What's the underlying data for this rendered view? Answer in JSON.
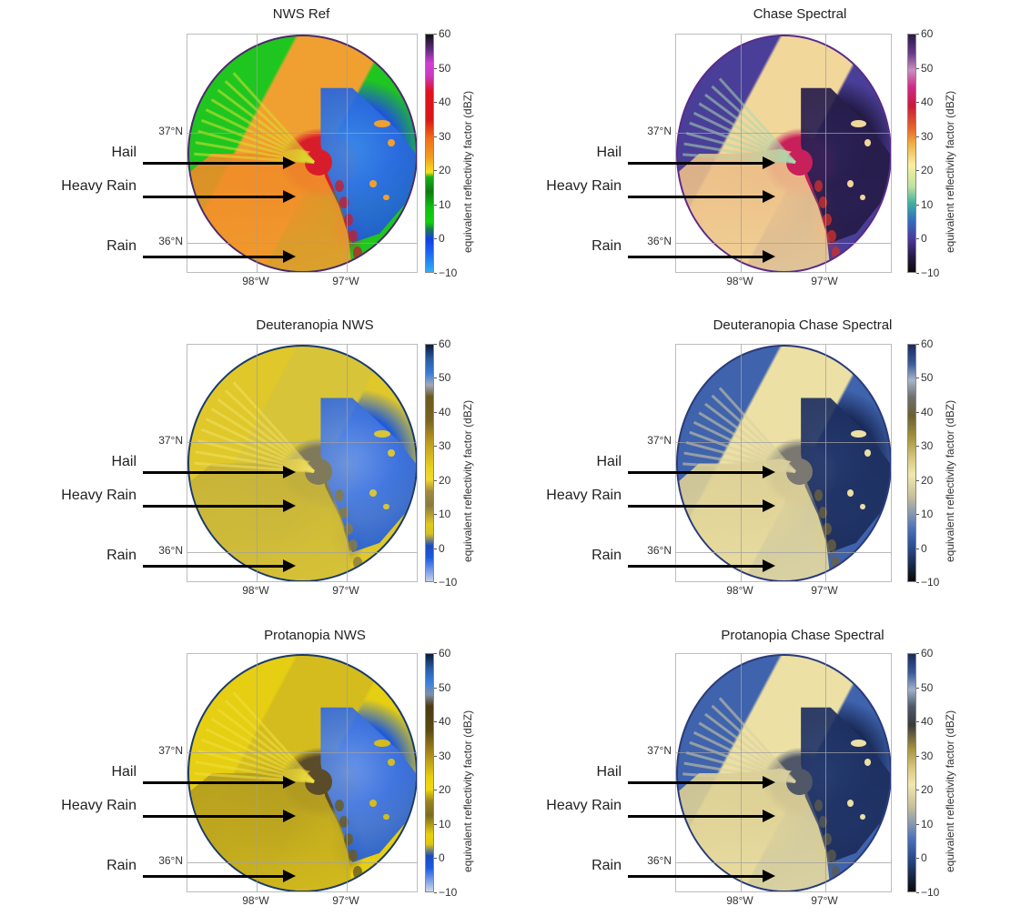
{
  "figure": {
    "panels": [
      {
        "id": "nws-ref",
        "title": "NWS Ref",
        "colormap": "NWS Reflectivity",
        "annotations": [
          "Hail",
          "Heavy Rain",
          "Rain"
        ],
        "lat_ticks": [
          "37°N",
          "36°N"
        ],
        "lon_ticks": [
          "98°W",
          "97°W"
        ],
        "colorbar": {
          "label": "equivalent reflectivity factor (dBZ)",
          "ticks": [
            "60",
            "50",
            "40",
            "30",
            "20",
            "10",
            "0",
            "−10"
          ],
          "stops": [
            "#111111 0%",
            "#5a2a7a 6%",
            "#d040d0 12%",
            "#c83ac8 17%",
            "#e01020 24%",
            "#d81818 36%",
            "#f07018 44%",
            "#f0a020 52%",
            "#f8e020 58%",
            "#18b018 60%",
            "#107a10 66%",
            "#10c010 73%",
            "#10d010 79%",
            "#1a7a4a 82%",
            "#1040e0 86%",
            "#1a60f0 91%",
            "#30b0f0 100%"
          ]
        },
        "palette": {
          "bg": "#1fc61f",
          "storm": "#f0a030",
          "storm2": "#f07a20",
          "core": "#d81d2a",
          "clear": "#1f55d8",
          "clear2": "#3a8ae8",
          "rim": "#4a2a6a",
          "edge": "#c02030",
          "ray": "#d8e030"
        }
      },
      {
        "id": "chase-spectral",
        "title": "Chase Spectral",
        "colormap": "Chase Spectral",
        "annotations": [
          "Hail",
          "Heavy Rain",
          "Rain"
        ],
        "lat_ticks": [
          "37°N",
          "36°N"
        ],
        "lon_ticks": [
          "98°W",
          "97°W"
        ],
        "colorbar": {
          "label": "equivalent reflectivity factor (dBZ)",
          "ticks": [
            "60",
            "50",
            "40",
            "30",
            "20",
            "10",
            "0",
            "−10"
          ],
          "stops": [
            "#2a1a4a 0%",
            "#6a3a8a 8%",
            "#c890c0 15%",
            "#d02a8a 22%",
            "#c81a3a 30%",
            "#e86a2a 40%",
            "#f0b040 46%",
            "#f8f0a0 55%",
            "#c0e0a0 64%",
            "#40b0a0 71%",
            "#3070c0 78%",
            "#4a3a9a 86%",
            "#2a1a4a 93%",
            "#0a0a0a 100%"
          ]
        },
        "palette": {
          "bg": "#4a3f98",
          "storm": "#f1d79a",
          "storm2": "#e8a878",
          "core": "#c8205a",
          "clear": "#231a44",
          "clear2": "#2c2258",
          "rim": "#5a2a8a",
          "edge": "#c83030",
          "ray": "#a8d8b0"
        }
      },
      {
        "id": "deuteranopia-nws",
        "title": "Deuteranopia NWS",
        "colormap": "NWS Reflectivity (deuteranopia simulation)",
        "annotations": [
          "Hail",
          "Heavy Rain",
          "Rain"
        ],
        "lat_ticks": [
          "37°N",
          "36°N"
        ],
        "lon_ticks": [
          "98°W",
          "97°W"
        ],
        "colorbar": {
          "label": "equivalent reflectivity factor (dBZ)",
          "ticks": [
            "60",
            "50",
            "40",
            "30",
            "20",
            "10",
            "0",
            "−10"
          ],
          "stops": [
            "#0a1a3a 0%",
            "#2a5aa0 6%",
            "#3a7ad8 12%",
            "#a0a8b8 17%",
            "#6a5a20 22%",
            "#7a6420 32%",
            "#c0a020 42%",
            "#e8d020 52%",
            "#f0d830 57%",
            "#a08a40 62%",
            "#8a7a40 68%",
            "#e0c820 76%",
            "#d8c020 80%",
            "#1a4ac0 85%",
            "#1a5ae0 90%",
            "#c8d0e8 100%"
          ]
        },
        "palette": {
          "bg": "#e0c82a",
          "storm": "#d8c438",
          "storm2": "#b8a43a",
          "core": "#807a5a",
          "clear": "#1f5ad8",
          "clear2": "#6a96e8",
          "rim": "#1a3a6a",
          "edge": "#8a7a40",
          "ray": "#f0e060"
        }
      },
      {
        "id": "deuteranopia-chase-spectral",
        "title": "Deuteranopia Chase Spectral",
        "colormap": "Chase Spectral (deuteranopia simulation)",
        "annotations": [
          "Hail",
          "Heavy Rain",
          "Rain"
        ],
        "lat_ticks": [
          "37°N",
          "36°N"
        ],
        "lon_ticks": [
          "98°W",
          "97°W"
        ],
        "colorbar": {
          "label": "equivalent reflectivity factor (dBZ)",
          "ticks": [
            "60",
            "50",
            "40",
            "30",
            "20",
            "10",
            "0",
            "−10"
          ],
          "stops": [
            "#1a2a5a 0%",
            "#3a5a9a 8%",
            "#a8b4c8 15%",
            "#707070 22%",
            "#6a6030 30%",
            "#a89840 40%",
            "#d8c880 48%",
            "#f0e8b0 55%",
            "#c8c098 64%",
            "#8a9ab0 71%",
            "#4a70b8 78%",
            "#2a4a8a 86%",
            "#1a2a4a 93%",
            "#0a0a0a 100%"
          ]
        },
        "palette": {
          "bg": "#3f63ad",
          "storm": "#ece0a4",
          "storm2": "#d2c48a",
          "core": "#7a7870",
          "clear": "#1a2a58",
          "clear2": "#243a70",
          "rim": "#2a3a7a",
          "edge": "#6a6040",
          "ray": "#d8d0a0"
        }
      },
      {
        "id": "protanopia-nws",
        "title": "Protanopia NWS",
        "colormap": "NWS Reflectivity (protanopia simulation)",
        "annotations": [
          "Hail",
          "Heavy Rain",
          "Rain"
        ],
        "lat_ticks": [
          "37°N",
          "36°N"
        ],
        "lon_ticks": [
          "98°W",
          "97°W"
        ],
        "colorbar": {
          "label": "equivalent reflectivity factor (dBZ)",
          "ticks": [
            "60",
            "50",
            "40",
            "30",
            "20",
            "10",
            "0",
            "−10"
          ],
          "stops": [
            "#0a1a3a 0%",
            "#2a5aa0 6%",
            "#3a80e0 12%",
            "#8090a8 17%",
            "#4a3a10 22%",
            "#5a4a12 32%",
            "#a88a1a 42%",
            "#e8d010 52%",
            "#f0d810 57%",
            "#9a8420 62%",
            "#7a6a20 68%",
            "#e8d010 76%",
            "#e0c810 80%",
            "#1a4ac0 85%",
            "#1a5ae0 90%",
            "#d0d8ea 100%"
          ]
        },
        "palette": {
          "bg": "#e6ce12",
          "storm": "#d4bc1e",
          "storm2": "#9a8420",
          "core": "#5a4c28",
          "clear": "#1f5ad8",
          "clear2": "#6a96e8",
          "rim": "#1a3a6a",
          "edge": "#6a5a20",
          "ray": "#f0e040"
        }
      },
      {
        "id": "protanopia-chase-spectral",
        "title": "Protanopia Chase Spectral",
        "colormap": "Chase Spectral (protanopia simulation)",
        "annotations": [
          "Hail",
          "Heavy Rain",
          "Rain"
        ],
        "lat_ticks": [
          "37°N",
          "36°N"
        ],
        "lon_ticks": [
          "98°W",
          "97°W"
        ],
        "colorbar": {
          "label": "equivalent reflectivity factor (dBZ)",
          "ticks": [
            "60",
            "50",
            "40",
            "30",
            "20",
            "10",
            "0",
            "−10"
          ],
          "stops": [
            "#1a2a5a 0%",
            "#3a5a9a 8%",
            "#a0b0c8 15%",
            "#505a6a 22%",
            "#3a3a3a 30%",
            "#a89440 40%",
            "#d8c880 48%",
            "#f0e8b0 55%",
            "#c8c098 64%",
            "#8a9ab0 71%",
            "#4a70b8 78%",
            "#2a4a8a 86%",
            "#1a2a4a 93%",
            "#0a0a0a 100%"
          ]
        },
        "palette": {
          "bg": "#3f63ad",
          "storm": "#ece0a4",
          "storm2": "#d0c286",
          "core": "#505868",
          "clear": "#1a2a58",
          "clear2": "#243a70",
          "rim": "#2a3a7a",
          "edge": "#5a5a50",
          "ray": "#d8d0a0"
        }
      }
    ]
  },
  "chart_data": [
    {
      "type": "heatmap",
      "title": "NWS Ref",
      "xlabel": "",
      "ylabel": "",
      "x_ticks": [
        "98°W",
        "97°W"
      ],
      "y_ticks": [
        "37°N",
        "36°N"
      ],
      "colorbar_label": "equivalent reflectivity factor (dBZ)",
      "colorbar_ticks": [
        60,
        50,
        40,
        30,
        20,
        10,
        0,
        -10
      ],
      "colorbar_range": [
        -10,
        60
      ],
      "annotations": [
        "Hail",
        "Heavy Rain",
        "Rain"
      ],
      "grid": true
    },
    {
      "type": "heatmap",
      "title": "Chase Spectral",
      "xlabel": "",
      "ylabel": "",
      "x_ticks": [
        "98°W",
        "97°W"
      ],
      "y_ticks": [
        "37°N",
        "36°N"
      ],
      "colorbar_label": "equivalent reflectivity factor (dBZ)",
      "colorbar_ticks": [
        60,
        50,
        40,
        30,
        20,
        10,
        0,
        -10
      ],
      "colorbar_range": [
        -10,
        60
      ],
      "annotations": [
        "Hail",
        "Heavy Rain",
        "Rain"
      ],
      "grid": true
    },
    {
      "type": "heatmap",
      "title": "Deuteranopia NWS",
      "xlabel": "",
      "ylabel": "",
      "x_ticks": [
        "98°W",
        "97°W"
      ],
      "y_ticks": [
        "37°N",
        "36°N"
      ],
      "colorbar_label": "equivalent reflectivity factor (dBZ)",
      "colorbar_ticks": [
        60,
        50,
        40,
        30,
        20,
        10,
        0,
        -10
      ],
      "colorbar_range": [
        -10,
        60
      ],
      "annotations": [
        "Hail",
        "Heavy Rain",
        "Rain"
      ],
      "grid": true
    },
    {
      "type": "heatmap",
      "title": "Deuteranopia Chase Spectral",
      "xlabel": "",
      "ylabel": "",
      "x_ticks": [
        "98°W",
        "97°W"
      ],
      "y_ticks": [
        "37°N",
        "36°N"
      ],
      "colorbar_label": "equivalent reflectivity factor (dBZ)",
      "colorbar_ticks": [
        60,
        50,
        40,
        30,
        20,
        10,
        0,
        -10
      ],
      "colorbar_range": [
        -10,
        60
      ],
      "annotations": [
        "Hail",
        "Heavy Rain",
        "Rain"
      ],
      "grid": true
    },
    {
      "type": "heatmap",
      "title": "Protanopia NWS",
      "xlabel": "",
      "ylabel": "",
      "x_ticks": [
        "98°W",
        "97°W"
      ],
      "y_ticks": [
        "37°N",
        "36°N"
      ],
      "colorbar_label": "equivalent reflectivity factor (dBZ)",
      "colorbar_ticks": [
        60,
        50,
        40,
        30,
        20,
        10,
        0,
        -10
      ],
      "colorbar_range": [
        -10,
        60
      ],
      "annotations": [
        "Hail",
        "Heavy Rain",
        "Rain"
      ],
      "grid": true
    },
    {
      "type": "heatmap",
      "title": "Protanopia Chase Spectral",
      "xlabel": "",
      "ylabel": "",
      "x_ticks": [
        "98°W",
        "97°W"
      ],
      "y_ticks": [
        "37°N",
        "36°N"
      ],
      "colorbar_label": "equivalent reflectivity factor (dBZ)",
      "colorbar_ticks": [
        60,
        50,
        40,
        30,
        20,
        10,
        0,
        -10
      ],
      "colorbar_range": [
        -10,
        60
      ],
      "annotations": [
        "Hail",
        "Heavy Rain",
        "Rain"
      ],
      "grid": true
    }
  ]
}
